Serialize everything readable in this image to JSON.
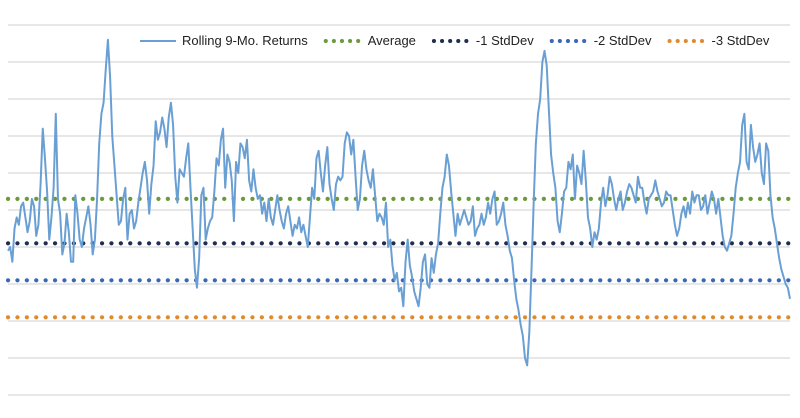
{
  "chart_data": {
    "type": "line",
    "title": "",
    "xlabel": "",
    "ylabel": "",
    "ylim": [
      0,
      10
    ],
    "grid": true,
    "legend_position": "top-right",
    "series": [
      {
        "name": "Rolling 9-Mo. Returns",
        "color": "#6a9fd4",
        "values": [
          3.9,
          4.0,
          3.6,
          4.5,
          4.8,
          4.6,
          5.1,
          5.2,
          4.8,
          4.4,
          4.7,
          5.3,
          5.1,
          4.3,
          4.6,
          5.7,
          7.2,
          6.4,
          5.5,
          4.2,
          4.8,
          5.6,
          7.6,
          5.3,
          4.9,
          3.8,
          4.1,
          4.9,
          4.4,
          3.6,
          3.6,
          5.4,
          4.9,
          4.2,
          4.0,
          4.5,
          4.8,
          5.1,
          4.6,
          3.8,
          4.2,
          5.3,
          6.8,
          7.6,
          7.9,
          8.8,
          9.6,
          8.6,
          7.0,
          6.2,
          5.4,
          4.6,
          4.7,
          5.3,
          5.6,
          4.2,
          4.9,
          5.0,
          4.5,
          4.7,
          5.2,
          5.6,
          6.0,
          6.3,
          5.8,
          4.9,
          5.7,
          6.2,
          7.4,
          6.9,
          7.1,
          7.5,
          7.2,
          6.7,
          7.5,
          7.9,
          7.3,
          5.9,
          5.2,
          6.1,
          6.0,
          5.9,
          6.4,
          6.8,
          5.6,
          4.5,
          3.4,
          2.9,
          3.7,
          5.4,
          5.6,
          4.2,
          4.5,
          4.7,
          4.8,
          5.5,
          6.4,
          6.2,
          6.9,
          7.2,
          5.6,
          6.5,
          6.3,
          5.8,
          4.7,
          6.3,
          6.0,
          6.8,
          6.7,
          6.4,
          6.9,
          5.8,
          5.5,
          6.1,
          5.6,
          5.3,
          5.4,
          4.9,
          5.2,
          4.7,
          5.3,
          4.8,
          4.6,
          5.0,
          5.4,
          5.0,
          4.7,
          4.5,
          4.9,
          5.1,
          4.7,
          4.3,
          4.6,
          4.5,
          4.8,
          4.4,
          4.6,
          4.3,
          4.0,
          4.8,
          5.6,
          5.3,
          6.4,
          6.6,
          6.0,
          5.5,
          6.2,
          6.7,
          5.7,
          5.3,
          5.0,
          5.7,
          5.9,
          5.8,
          5.9,
          6.8,
          7.1,
          7.0,
          6.5,
          6.9,
          5.9,
          5.0,
          5.3,
          6.2,
          6.6,
          6.1,
          5.8,
          5.6,
          6.1,
          5.4,
          4.7,
          4.9,
          4.8,
          4.6,
          5.2,
          4.0,
          4.2,
          3.5,
          3.1,
          3.3,
          2.8,
          2.9,
          2.4,
          3.6,
          4.2,
          3.5,
          3.2,
          2.8,
          2.6,
          2.4,
          2.9,
          3.6,
          3.8,
          3.0,
          2.9,
          3.7,
          3.3,
          3.8,
          4.1,
          4.9,
          5.6,
          5.9,
          6.5,
          6.2,
          5.5,
          4.9,
          4.3,
          4.9,
          4.6,
          4.8,
          5.0,
          4.8,
          4.6,
          4.7,
          5.1,
          4.3,
          4.5,
          4.6,
          4.9,
          4.6,
          4.8,
          5.2,
          4.9,
          5.3,
          5.5,
          4.6,
          4.7,
          4.9,
          5.2,
          4.6,
          4.3,
          3.9,
          3.7,
          3.1,
          2.6,
          2.3,
          1.9,
          1.6,
          1.0,
          0.8,
          1.7,
          3.4,
          5.2,
          6.8,
          7.6,
          8.0,
          9.0,
          9.3,
          8.9,
          7.7,
          6.5,
          6.0,
          5.6,
          4.7,
          4.4,
          4.9,
          5.5,
          5.6,
          6.3,
          6.1,
          6.5,
          5.3,
          6.2,
          6.0,
          5.7,
          6.6,
          5.8,
          4.8,
          4.5,
          4.0,
          4.4,
          4.2,
          4.5,
          5.2,
          5.6,
          5.1,
          5.4,
          5.9,
          5.7,
          5.3,
          5.0,
          5.3,
          5.5,
          5.0,
          5.2,
          5.5,
          5.7,
          5.6,
          5.4,
          5.2,
          5.9,
          5.6,
          5.6,
          5.2,
          4.9,
          5.3,
          5.4,
          5.5,
          5.8,
          5.5,
          5.3,
          5.1,
          5.2,
          5.5,
          5.4,
          5.4,
          5.0,
          4.6,
          4.3,
          4.5,
          4.9,
          5.1,
          4.8,
          5.2,
          4.9,
          5.5,
          5.2,
          5.4,
          5.4,
          5.0,
          5.1,
          5.4,
          4.9,
          5.2,
          5.5,
          5.3,
          4.9,
          5.3,
          4.8,
          4.3,
          4.0,
          3.9,
          4.1,
          4.3,
          4.9,
          5.6,
          6.0,
          6.3,
          7.3,
          7.6,
          6.3,
          6.1,
          7.3,
          6.7,
          6.3,
          6.5,
          6.8,
          6.0,
          5.7,
          6.8,
          6.6,
          5.4,
          4.8,
          4.5,
          4.1,
          3.7,
          3.4,
          3.2,
          3.0,
          2.9,
          2.6
        ]
      },
      {
        "name": "Average",
        "color": "#6b9a3a",
        "constant": 5.3
      },
      {
        "name": "-1 StdDev",
        "color": "#1f2d52",
        "constant": 4.1
      },
      {
        "name": "-2 StdDev",
        "color": "#3a68b8",
        "constant": 3.1
      },
      {
        "name": "-3 StdDev",
        "color": "#e08a2e",
        "constant": 2.1
      }
    ]
  }
}
